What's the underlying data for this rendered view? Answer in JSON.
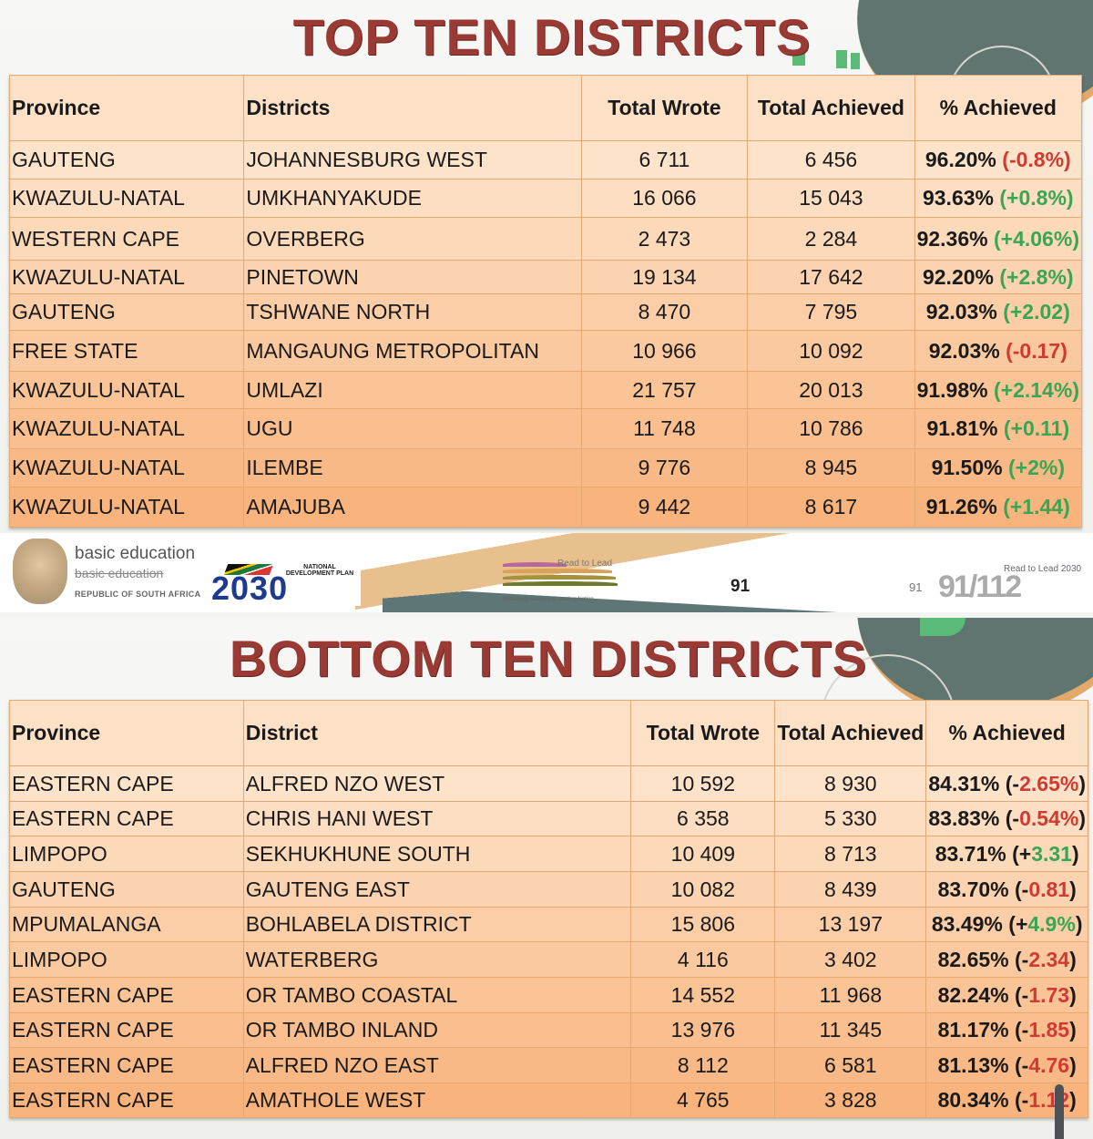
{
  "top_slide": {
    "title": "TOP TEN DISTRICTS",
    "columns": [
      "Province",
      "Districts",
      "Total Wrote",
      "Total Achieved",
      "% Achieved"
    ],
    "rows": [
      {
        "province": "GAUTENG",
        "district": "JOHANNESBURG WEST",
        "wrote": "6 711",
        "achieved": "6 456",
        "pct": "96.20%",
        "change_open": "(",
        "change": "-0.8%",
        "change_close": ")",
        "trend": "neg"
      },
      {
        "province": "KWAZULU-NATAL",
        "district": "UMKHANYAKUDE",
        "wrote": "16 066",
        "achieved": "15 043",
        "pct": "93.63%",
        "change_open": "(",
        "change": "+0.8%",
        "change_close": ")",
        "trend": "pos"
      },
      {
        "province": "WESTERN CAPE",
        "district": "OVERBERG",
        "wrote": "2 473",
        "achieved": "2 284",
        "pct": "92.36%",
        "change_open": "(",
        "change": "+4.06%",
        "change_close": ")",
        "trend": "pos"
      },
      {
        "province": "KWAZULU-NATAL",
        "district": "PINETOWN",
        "wrote": "19 134",
        "achieved": "17 642",
        "pct": "92.20%",
        "change_open": "(",
        "change": "+2.8%",
        "change_close": ")",
        "trend": "pos"
      },
      {
        "province": "GAUTENG",
        "district": "TSHWANE NORTH",
        "wrote": "8 470",
        "achieved": "7 795",
        "pct": "92.03%",
        "change_open": "(",
        "change": "+2.02",
        "change_close": ")",
        "trend": "pos"
      },
      {
        "province": "FREE STATE",
        "district": "MANGAUNG METROPOLITAN",
        "wrote": "10 966",
        "achieved": "10 092",
        "pct": "92.03%",
        "change_open": "(",
        "change": "-0.17",
        "change_close": ")",
        "trend": "neg"
      },
      {
        "province": "KWAZULU-NATAL",
        "district": "UMLAZI",
        "wrote": "21 757",
        "achieved": "20 013",
        "pct": "91.98%",
        "change_open": "(",
        "change": "+2.14%",
        "change_close": ")",
        "trend": "pos"
      },
      {
        "province": "KWAZULU-NATAL",
        "district": "UGU",
        "wrote": "11 748",
        "achieved": "10 786",
        "pct": "91.81%",
        "change_open": "(",
        "change": "+0.11",
        "change_close": ")",
        "trend": "pos"
      },
      {
        "province": "KWAZULU-NATAL",
        "district": "ILEMBE",
        "wrote": "9 776",
        "achieved": "8 945",
        "pct": "91.50%",
        "change_open": "(",
        "change": "+2%",
        "change_close": ")",
        "trend": "pos"
      },
      {
        "province": "KWAZULU-NATAL",
        "district": "AMAJUBA",
        "wrote": "9 442",
        "achieved": "8 617",
        "pct": "91.26%",
        "change_open": "(",
        "change": "+1.44",
        "change_close": ")",
        "trend": "pos"
      }
    ]
  },
  "footer": {
    "department_name": "basic education",
    "department_name_struck": "basic education",
    "country": "REPUBLIC OF SOUTH AFRICA",
    "ndp_year": "2030",
    "ndp_label": "NATIONAL DEVELOPMENT PLAN",
    "read_to_lead": "Read to Lead",
    "read_to_lead_tagline": "A Reading Nation is a Leading Nation",
    "page_number": "91",
    "page_number_faint": "91",
    "page_ghost": "91/112",
    "read_to_lead_2": "Read to Lead 2030"
  },
  "bottom_slide": {
    "title": "BOTTOM TEN DISTRICTS",
    "columns": [
      "Province",
      "District",
      "Total Wrote",
      "Total Achieved",
      "% Achieved"
    ],
    "rows": [
      {
        "province": "EASTERN CAPE",
        "district": "ALFRED NZO WEST",
        "wrote": "10 592",
        "achieved": "8 930",
        "pct": "84.31%",
        "change_open": "(-",
        "change": "2.65%",
        "change_close": ")",
        "trend": "neg"
      },
      {
        "province": "EASTERN CAPE",
        "district": "CHRIS HANI WEST",
        "wrote": "6 358",
        "achieved": "5 330",
        "pct": "83.83%",
        "change_open": "(-",
        "change": "0.54%",
        "change_close": ")",
        "trend": "neg"
      },
      {
        "province": "LIMPOPO",
        "district": "SEKHUKHUNE SOUTH",
        "wrote": "10 409",
        "achieved": "8 713",
        "pct": "83.71%",
        "change_open": "(+",
        "change": "3.31",
        "change_close": ")",
        "trend": "pos"
      },
      {
        "province": "GAUTENG",
        "district": "GAUTENG EAST",
        "wrote": "10 082",
        "achieved": "8 439",
        "pct": "83.70%",
        "change_open": "(-",
        "change": "0.81",
        "change_close": ")",
        "trend": "neg"
      },
      {
        "province": "MPUMALANGA",
        "district": "BOHLABELA DISTRICT",
        "wrote": "15 806",
        "achieved": "13 197",
        "pct": "83.49%",
        "change_open": "(+",
        "change": "4.9%",
        "change_close": ")",
        "trend": "pos"
      },
      {
        "province": "LIMPOPO",
        "district": "WATERBERG",
        "wrote": "4 116",
        "achieved": "3 402",
        "pct": "82.65%",
        "change_open": "(-",
        "change": "2.34",
        "change_close": ")",
        "trend": "neg"
      },
      {
        "province": "EASTERN CAPE",
        "district": "OR TAMBO COASTAL",
        "wrote": "14 552",
        "achieved": "11 968",
        "pct": "82.24%",
        "change_open": "(-",
        "change": "1.73",
        "change_close": ")",
        "trend": "neg"
      },
      {
        "province": "EASTERN CAPE",
        "district": "OR TAMBO INLAND",
        "wrote": "13 976",
        "achieved": "11 345",
        "pct": "81.17%",
        "change_open": "(-",
        "change": "1.85",
        "change_close": ")",
        "trend": "neg"
      },
      {
        "province": "EASTERN CAPE",
        "district": "ALFRED NZO EAST",
        "wrote": "8 112",
        "achieved": "6 581",
        "pct": "81.13%",
        "change_open": "(-",
        "change": "4.76",
        "change_close": ")",
        "trend": "neg"
      },
      {
        "province": "EASTERN CAPE",
        "district": "AMATHOLE WEST",
        "wrote": "4 765",
        "achieved": "3 828",
        "pct": "80.34%",
        "change_open": "(-",
        "change": "1.12",
        "change_close": ")",
        "trend": "neg"
      }
    ]
  },
  "colors": {
    "title": "#9a3a34",
    "negative": "#d03a32",
    "positive": "#3aa552",
    "table_border": "#e6a873",
    "row_light": "#fde3ca",
    "row_dark": "#f9b47e"
  }
}
